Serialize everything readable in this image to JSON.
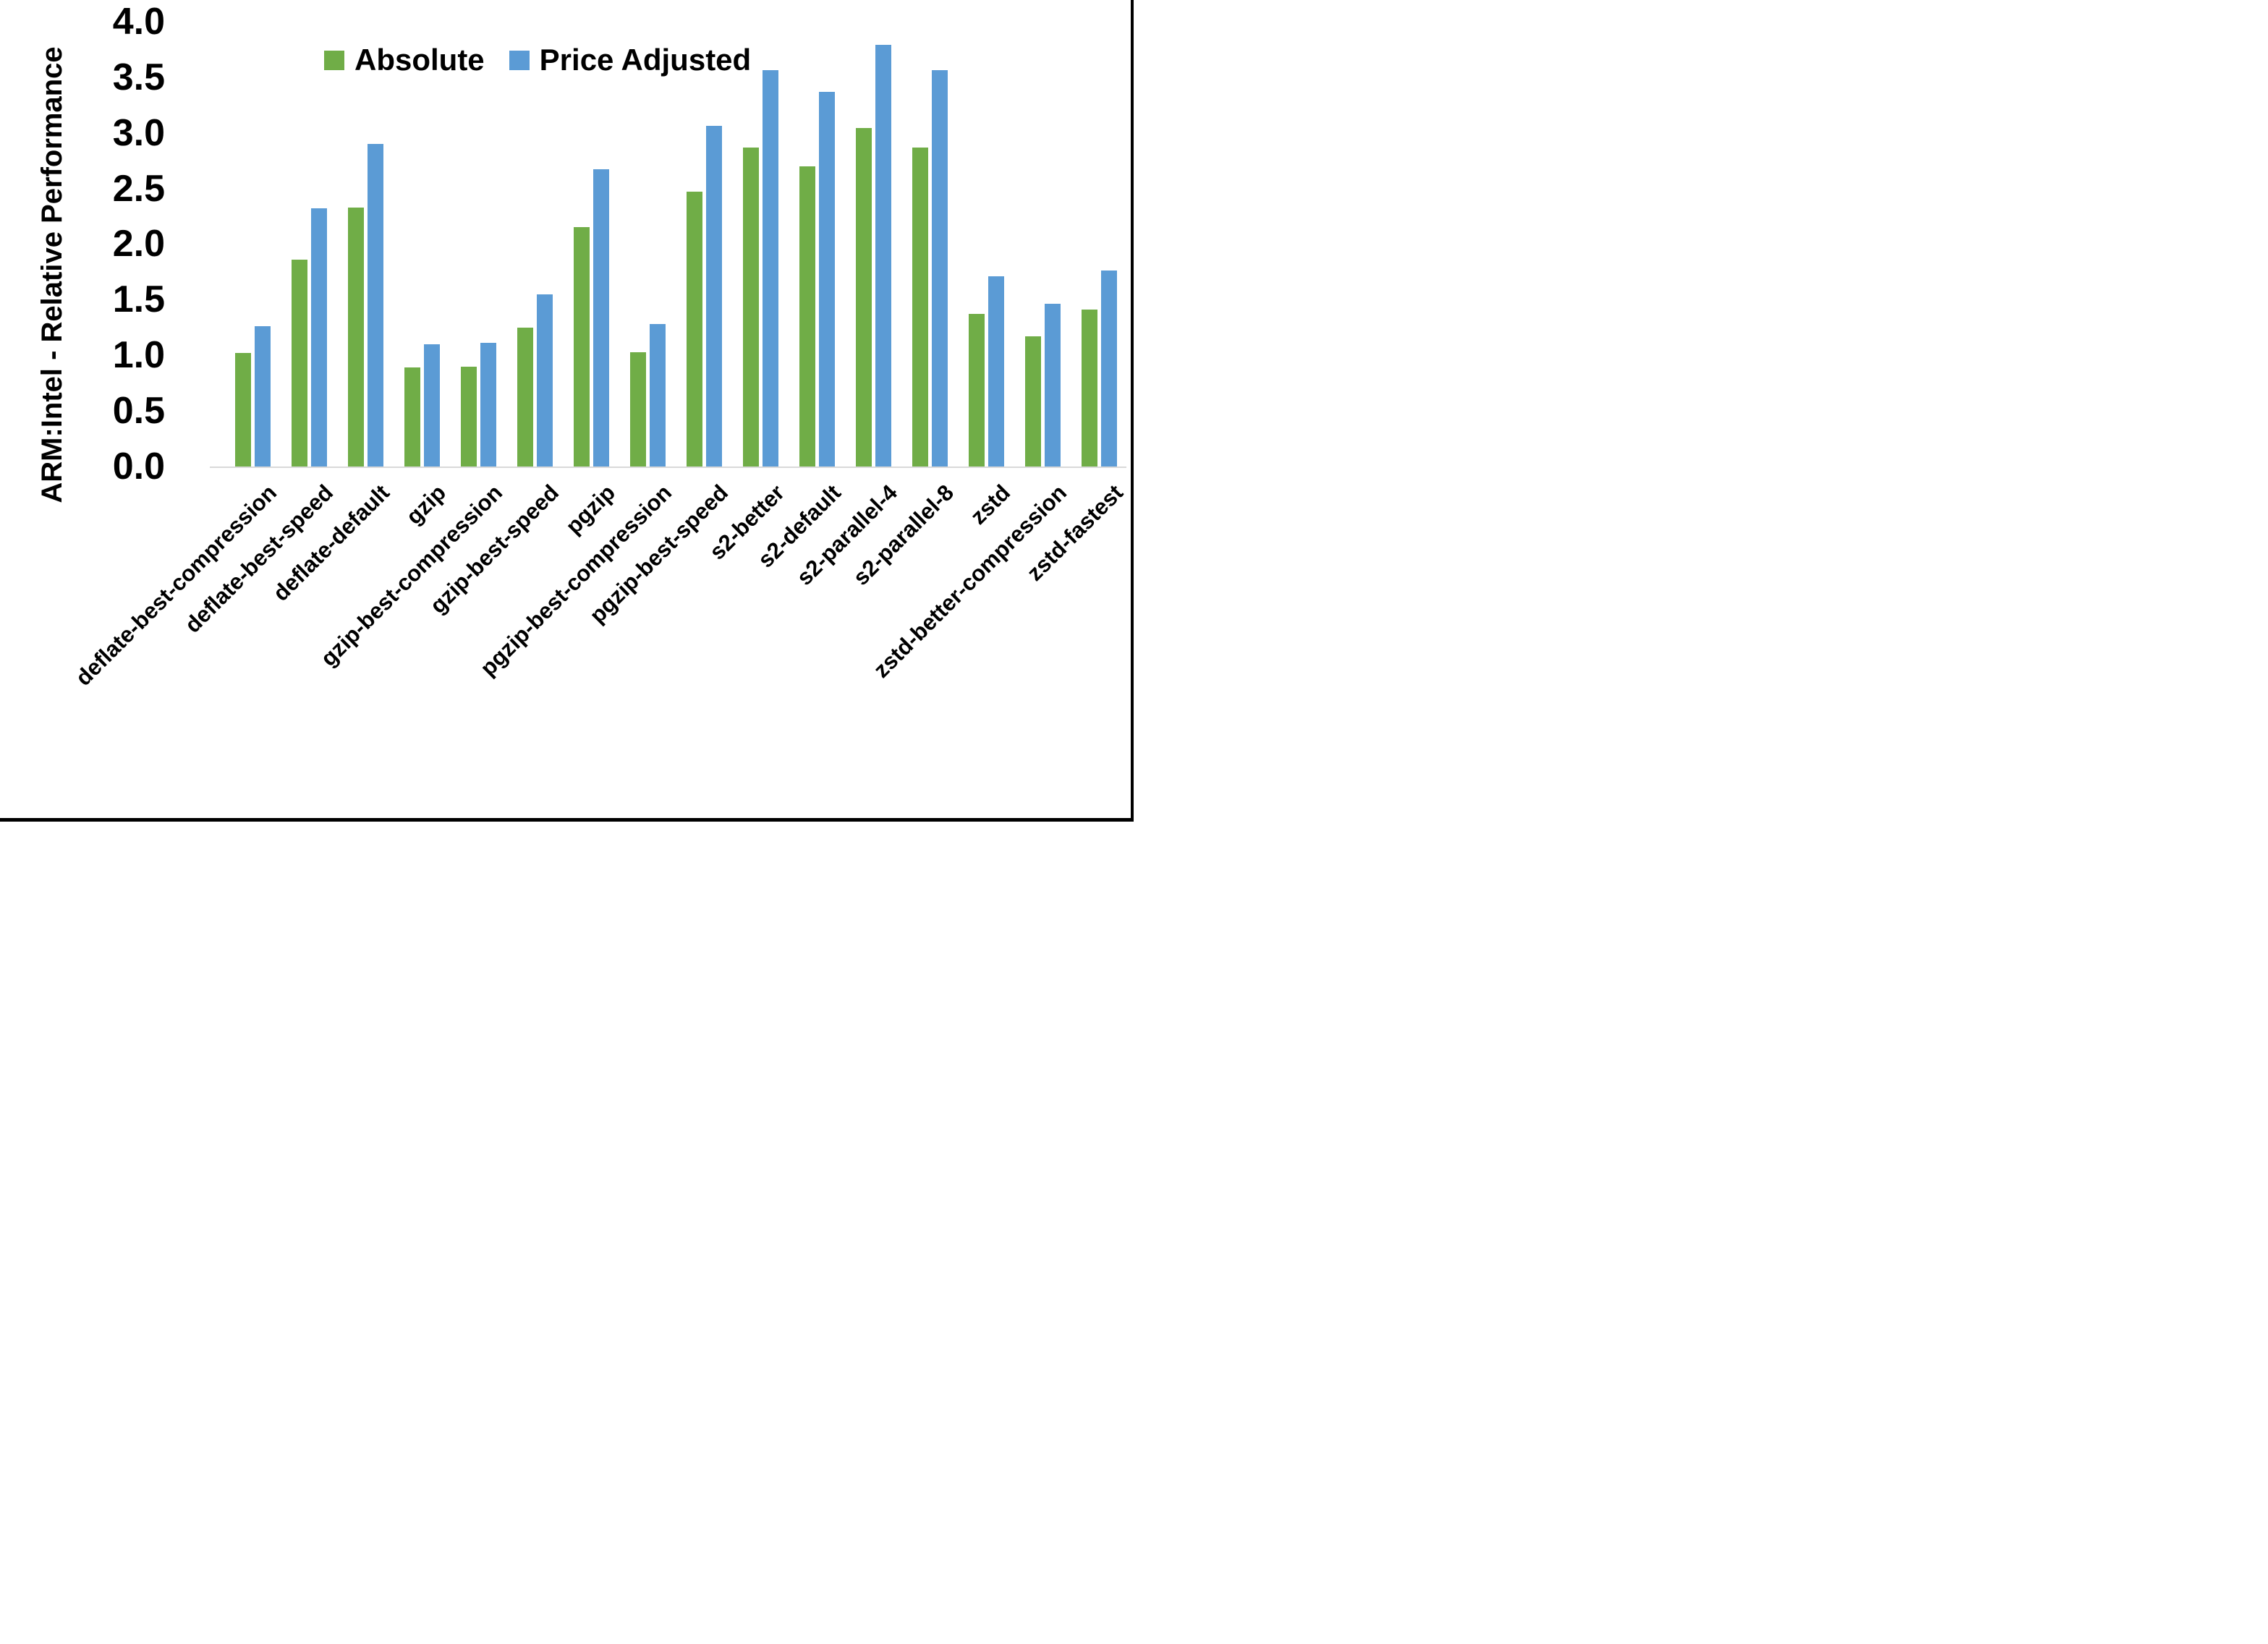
{
  "axes": {
    "y_title": "ARM:Intel - Relative Performance",
    "baseline_color": "#d9d9d9",
    "text_color": "#000000"
  },
  "legend": {
    "items": [
      {
        "label": "Absolute",
        "color": "#70ad47"
      },
      {
        "label": "Price Adjusted",
        "color": "#5b9bd5"
      }
    ]
  },
  "chart_data": {
    "type": "bar",
    "title": "",
    "xlabel": "",
    "ylabel": "ARM:Intel - Relative Performance",
    "ylim": [
      0.0,
      4.0
    ],
    "ytick_step": 0.5,
    "ytick_labels": [
      "4.0",
      "3.5",
      "3.0",
      "2.5",
      "2.0",
      "1.5",
      "1.0",
      "0.5",
      "0.0"
    ],
    "grid": false,
    "legend_position": "top-center",
    "categories": [
      "deflate-best-compression",
      "deflate-best-speed",
      "deflate-default",
      "gzip",
      "gzip-best-compression",
      "gzip-best-speed",
      "pgzip",
      "pgzip-best-compression",
      "pgzip-best-speed",
      "s2-better",
      "s2-default",
      "s2-parallel-4",
      "s2-parallel-8",
      "zstd",
      "zstd-better-compression",
      "zstd-fastest"
    ],
    "series": [
      {
        "name": "Absolute",
        "color": "#70ad47",
        "values": [
          1.02,
          1.86,
          2.33,
          0.89,
          0.9,
          1.25,
          2.15,
          1.03,
          2.47,
          2.87,
          2.7,
          3.04,
          2.87,
          1.37,
          1.17,
          1.41
        ]
      },
      {
        "name": "Price Adjusted",
        "color": "#5b9bd5",
        "values": [
          1.26,
          2.32,
          2.9,
          1.1,
          1.11,
          1.55,
          2.67,
          1.28,
          3.06,
          3.56,
          3.37,
          3.79,
          3.56,
          1.71,
          1.46,
          1.76
        ]
      }
    ]
  }
}
